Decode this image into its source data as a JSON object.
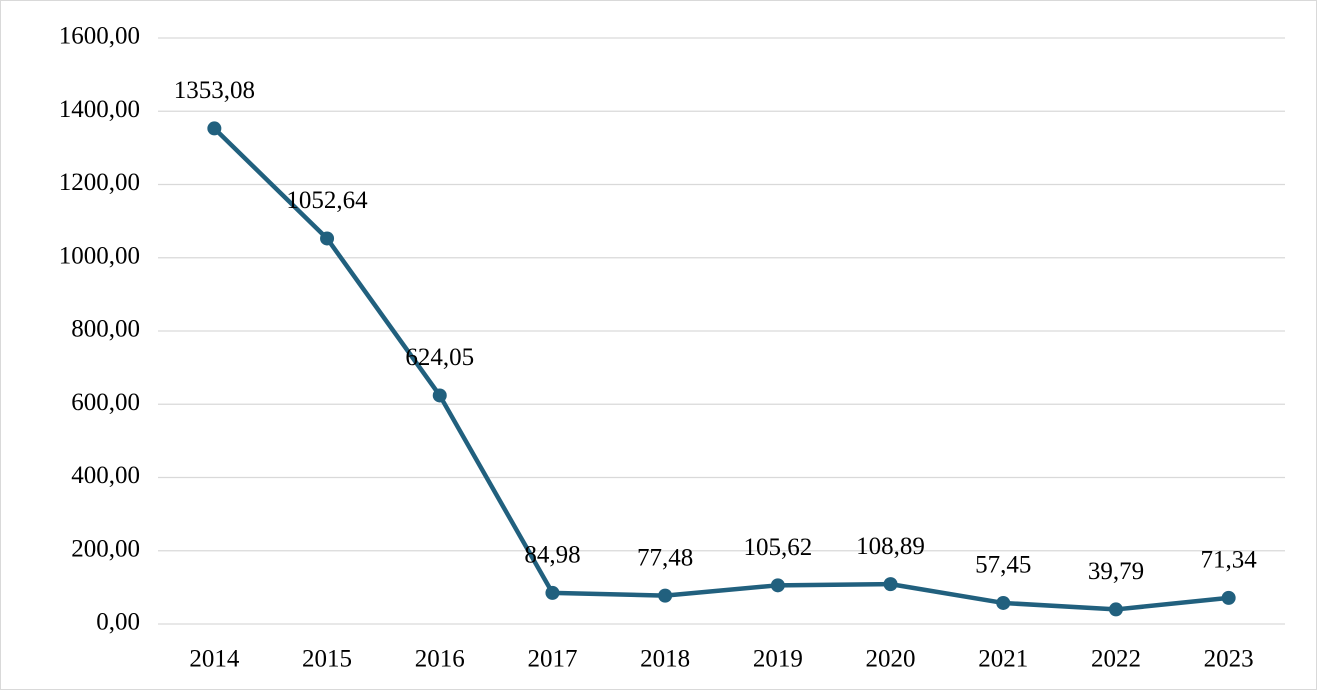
{
  "chart_data": {
    "type": "line",
    "categories": [
      "2014",
      "2015",
      "2016",
      "2017",
      "2018",
      "2019",
      "2020",
      "2021",
      "2022",
      "2023"
    ],
    "series": [
      {
        "color": "#21607e",
        "values": [
          1353.08,
          1052.64,
          624.05,
          84.98,
          77.48,
          105.62,
          108.89,
          57.45,
          39.79,
          71.34
        ],
        "value_labels": [
          "1353,08",
          "1052,64",
          "624,05",
          "84,98",
          "77,48",
          "105,62",
          "108,89",
          "57,45",
          "39,79",
          "71,34"
        ]
      }
    ],
    "ylim": [
      0,
      1600
    ],
    "yticks": [
      {
        "value": 0,
        "label": "0,00"
      },
      {
        "value": 200,
        "label": "200,00"
      },
      {
        "value": 400,
        "label": "400,00"
      },
      {
        "value": 600,
        "label": "600,00"
      },
      {
        "value": 800,
        "label": "800,00"
      },
      {
        "value": 1000,
        "label": "1000,00"
      },
      {
        "value": 1200,
        "label": "1200,00"
      },
      {
        "value": 1400,
        "label": "1400,00"
      },
      {
        "value": 1600,
        "label": "1600,00"
      }
    ],
    "grid": true
  }
}
